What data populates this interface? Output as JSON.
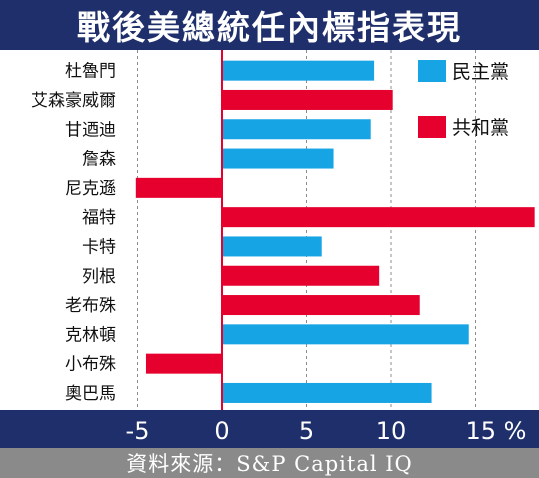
{
  "title": "戰後美總統任內標指表現",
  "source": "資料來源：S&P Capital IQ",
  "colors": {
    "background": "#ffffff",
    "banner": "#1f2f6b",
    "source_bar": "#8a8a8a",
    "democrat": "#17a4e4",
    "republican": "#e5002e"
  },
  "chart_data": {
    "type": "bar",
    "orientation": "horizontal",
    "categories": [
      "杜魯門",
      "艾森豪威爾",
      "甘迺迪",
      "詹森",
      "尼克遜",
      "福特",
      "卡特",
      "列根",
      "老布殊",
      "克林頓",
      "小布殊",
      "奧巴馬"
    ],
    "values": [
      9.0,
      10.1,
      8.8,
      6.6,
      -5.1,
      18.5,
      5.9,
      9.3,
      11.7,
      14.6,
      -4.5,
      12.4
    ],
    "party": [
      "民主黨",
      "共和黨",
      "民主黨",
      "民主黨",
      "共和黨",
      "共和黨",
      "民主黨",
      "共和黨",
      "共和黨",
      "民主黨",
      "共和黨",
      "民主黨"
    ],
    "legend": [
      {
        "name": "民主黨",
        "color": "#17a4e4"
      },
      {
        "name": "共和黨",
        "color": "#e5002e"
      }
    ],
    "legend_position": "top-right",
    "xticks": [
      -5,
      0,
      5,
      10,
      15
    ],
    "xtick_labels": [
      "-5",
      "0",
      "5",
      "10",
      "15 %"
    ],
    "xlim": [
      -5.4,
      18.5
    ],
    "gridlines": "dashed vertical at ticks"
  }
}
